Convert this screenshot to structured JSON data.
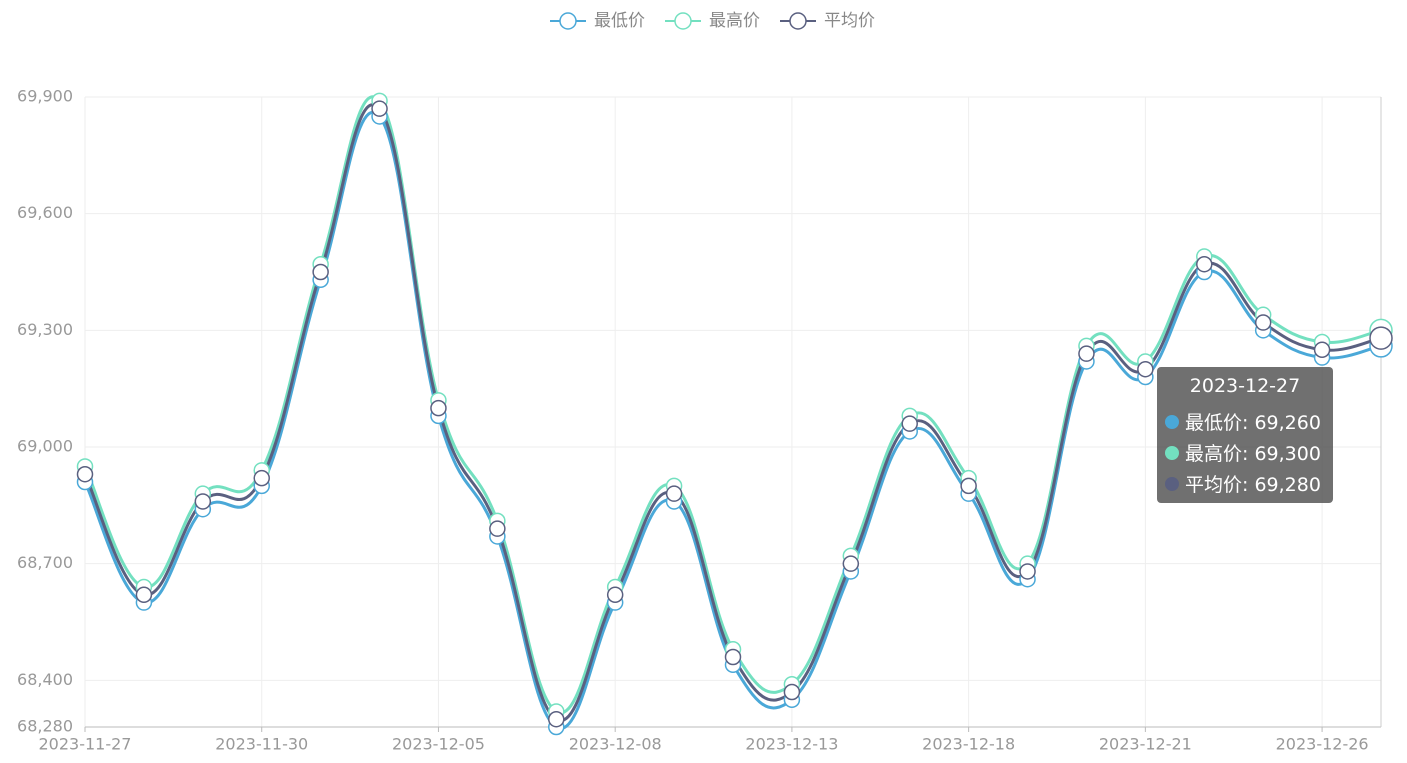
{
  "chart_data": {
    "type": "line",
    "categories": [
      "2023-11-27",
      null,
      null,
      "2023-11-30",
      null,
      null,
      "2023-12-05",
      null,
      null,
      "2023-12-08",
      null,
      null,
      "2023-12-13",
      null,
      null,
      "2023-12-18",
      null,
      null,
      "2023-12-21",
      null,
      null,
      "2023-12-26",
      "2023-12-27"
    ],
    "series": [
      {
        "name": "最低价",
        "color": "#4aa8d8",
        "values": [
          68910,
          68600,
          68840,
          68900,
          69430,
          69850,
          69080,
          68770,
          68280,
          68600,
          68860,
          68440,
          68350,
          68680,
          69040,
          68880,
          68660,
          69220,
          69180,
          69450,
          69300,
          69230,
          69260
        ]
      },
      {
        "name": "最高价",
        "color": "#73e0c0",
        "values": [
          68950,
          68640,
          68880,
          68940,
          69470,
          69890,
          69120,
          68810,
          68320,
          68640,
          68900,
          68480,
          68390,
          68720,
          69080,
          68920,
          68700,
          69260,
          69220,
          69490,
          69340,
          69270,
          69300
        ]
      },
      {
        "name": "平均价",
        "color": "#5a6080",
        "values": [
          68930,
          68620,
          68860,
          68920,
          69450,
          69870,
          69100,
          68790,
          68300,
          68620,
          68880,
          68460,
          68370,
          68700,
          69060,
          68900,
          68680,
          69240,
          69200,
          69470,
          69320,
          69250,
          69280
        ]
      }
    ],
    "ylim": [
      68280,
      69900
    ],
    "yticks": [
      {
        "value": 68280,
        "label": "68,280"
      },
      {
        "value": 68400,
        "label": "68,400"
      },
      {
        "value": 68700,
        "label": "68,700"
      },
      {
        "value": 69000,
        "label": "69,000"
      },
      {
        "value": 69300,
        "label": "69,300"
      },
      {
        "value": 69600,
        "label": "69,600"
      },
      {
        "value": 69900,
        "label": "69,900"
      }
    ],
    "grid": true,
    "legend": "top",
    "tooltip": {
      "items": [
        "最低价: 69,260",
        "最高价: 69,300",
        "平均价: 69,280"
      ]
    }
  }
}
